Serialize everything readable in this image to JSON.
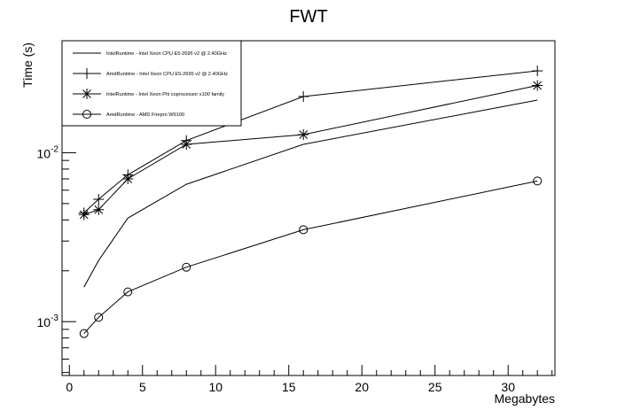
{
  "chart_data": {
    "type": "line",
    "title": "FWT",
    "xlabel": "Megabytes",
    "ylabel": "Time (s)",
    "xlim": [
      -0.5,
      33.2
    ],
    "ylim": [
      0.00048,
      0.046
    ],
    "y_scale": "log",
    "x_ticks": [
      0,
      5,
      10,
      15,
      20,
      25,
      30
    ],
    "x_tick_labels": [
      "0",
      "5",
      "10",
      "15",
      "20",
      "25",
      "30"
    ],
    "y_major_ticks": [
      {
        "value": 0.001,
        "base": "10",
        "exp": "-3"
      },
      {
        "value": 0.01,
        "base": "10",
        "exp": "-2"
      }
    ],
    "legend_position": "top-left",
    "series": [
      {
        "name": "IntelRuntime - Intel Xeon CPU E5-2695 v2 @ 2.40GHz",
        "marker": "none",
        "x": [
          1,
          2,
          4,
          8,
          16,
          32
        ],
        "y": [
          0.0016,
          0.0023,
          0.0041,
          0.0065,
          0.0112,
          0.0205
        ]
      },
      {
        "name": "AmdRuntime - Intel Xeon CPU E5-2695 v2 @ 2.40GHz",
        "marker": "plus",
        "x": [
          1,
          2,
          4,
          8,
          16,
          32
        ],
        "y": [
          0.0044,
          0.0053,
          0.0074,
          0.0118,
          0.0215,
          0.0305
        ]
      },
      {
        "name": "IntelRuntime - Intel Xeon Phi coprocessor x100 family",
        "marker": "star",
        "x": [
          1,
          2,
          4,
          8,
          16,
          32
        ],
        "y": [
          0.0043,
          0.0046,
          0.007,
          0.0112,
          0.0128,
          0.025
        ]
      },
      {
        "name": "AmdRuntime - AMD Firepro W9100",
        "marker": "circle",
        "x": [
          1,
          2,
          4,
          8,
          16,
          32
        ],
        "y": [
          0.00085,
          0.00106,
          0.0015,
          0.0021,
          0.0035,
          0.0068
        ]
      }
    ]
  }
}
